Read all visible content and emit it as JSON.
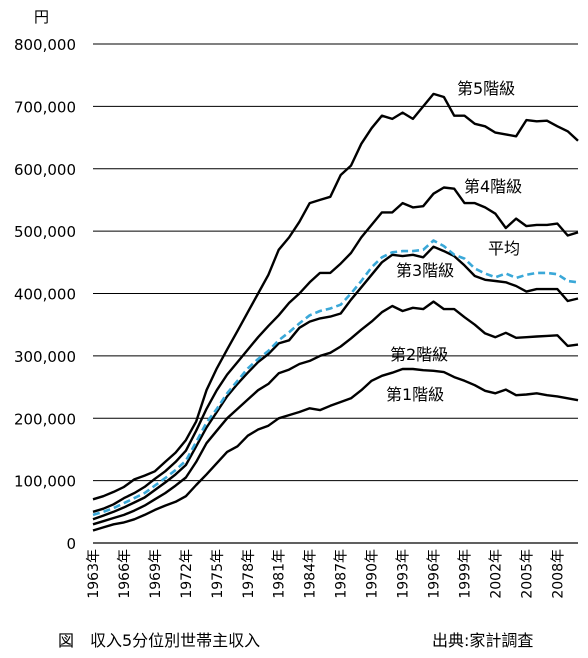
{
  "chart_data": {
    "type": "line",
    "y_unit": "円",
    "ylim": [
      0,
      800000
    ],
    "y_ticks": [
      0,
      100000,
      200000,
      300000,
      400000,
      500000,
      600000,
      700000,
      800000
    ],
    "y_tick_labels": [
      "0",
      "100,000",
      "200,000",
      "300,000",
      "400,000",
      "500,000",
      "600,000",
      "700,000",
      "800,000"
    ],
    "x": [
      1963,
      1964,
      1965,
      1966,
      1967,
      1968,
      1969,
      1970,
      1971,
      1972,
      1973,
      1974,
      1975,
      1976,
      1977,
      1978,
      1979,
      1980,
      1981,
      1982,
      1983,
      1984,
      1985,
      1986,
      1987,
      1988,
      1989,
      1990,
      1991,
      1992,
      1993,
      1994,
      1995,
      1996,
      1997,
      1998,
      1999,
      2000,
      2001,
      2002,
      2003,
      2004,
      2005,
      2006,
      2007,
      2008,
      2009,
      2010
    ],
    "x_ticks": [
      1963,
      1966,
      1969,
      1972,
      1975,
      1978,
      1981,
      1984,
      1987,
      1990,
      1993,
      1996,
      1999,
      2002,
      2005,
      2008
    ],
    "x_tick_labels": [
      "1963年",
      "1966年",
      "1969年",
      "1972年",
      "1975年",
      "1978年",
      "1981年",
      "1984年",
      "1987年",
      "1990年",
      "1993年",
      "1996年",
      "1999年",
      "2002年",
      "2005年",
      "2008年"
    ],
    "grid": "horizontal",
    "series": [
      {
        "name": "第1階級",
        "style": "solid",
        "color": "#000000",
        "values": [
          20000,
          25000,
          30000,
          33000,
          38000,
          45000,
          53000,
          60000,
          66000,
          75000,
          93000,
          110000,
          128000,
          146000,
          155000,
          172000,
          182000,
          188000,
          200000,
          205000,
          210000,
          216000,
          213000,
          220000,
          226000,
          232000,
          245000,
          260000,
          268000,
          273000,
          279000,
          279000,
          277000,
          276000,
          274000,
          266000,
          260000,
          253000,
          244000,
          240000,
          246000,
          237000,
          238000,
          240000,
          237000,
          235000,
          232000,
          229000
        ]
      },
      {
        "name": "第2階級",
        "style": "solid",
        "color": "#000000",
        "values": [
          30000,
          35000,
          40000,
          45000,
          52000,
          60000,
          70000,
          80000,
          92000,
          105000,
          130000,
          160000,
          180000,
          200000,
          215000,
          230000,
          245000,
          255000,
          272000,
          278000,
          287000,
          292000,
          300000,
          305000,
          315000,
          328000,
          342000,
          355000,
          370000,
          380000,
          372000,
          377000,
          375000,
          387000,
          375000,
          375000,
          362000,
          350000,
          336000,
          330000,
          337000,
          329000,
          330000,
          331000,
          332000,
          333000,
          316000,
          318000
        ]
      },
      {
        "name": "第3階級",
        "style": "solid",
        "color": "#000000",
        "values": [
          38000,
          44000,
          50000,
          57000,
          65000,
          73000,
          85000,
          97000,
          110000,
          125000,
          155000,
          185000,
          210000,
          235000,
          255000,
          273000,
          290000,
          303000,
          320000,
          325000,
          345000,
          355000,
          360000,
          363000,
          368000,
          390000,
          410000,
          430000,
          450000,
          462000,
          460000,
          462000,
          458000,
          475000,
          468000,
          460000,
          445000,
          428000,
          422000,
          420000,
          418000,
          412000,
          403000,
          407000,
          407000,
          407000,
          388000,
          392000
        ]
      },
      {
        "name": "平均",
        "style": "dashed",
        "color": "#3aa8d8",
        "values": [
          45000,
          50000,
          56000,
          64000,
          72000,
          80000,
          92000,
          104000,
          117000,
          132000,
          162000,
          193000,
          215000,
          240000,
          260000,
          280000,
          295000,
          308000,
          325000,
          338000,
          352000,
          365000,
          372000,
          376000,
          382000,
          400000,
          420000,
          442000,
          458000,
          466000,
          468000,
          468000,
          470000,
          485000,
          476000,
          462000,
          456000,
          440000,
          432000,
          426000,
          432000,
          425000,
          430000,
          433000,
          433000,
          431000,
          420000,
          418000
        ]
      },
      {
        "name": "第4階級",
        "style": "solid",
        "color": "#000000",
        "values": [
          50000,
          55000,
          62000,
          72000,
          80000,
          90000,
          103000,
          115000,
          130000,
          148000,
          180000,
          215000,
          245000,
          270000,
          290000,
          310000,
          330000,
          348000,
          365000,
          385000,
          400000,
          418000,
          433000,
          433000,
          448000,
          465000,
          490000,
          510000,
          530000,
          530000,
          545000,
          538000,
          540000,
          560000,
          570000,
          568000,
          545000,
          545000,
          538000,
          528000,
          505000,
          520000,
          508000,
          510000,
          510000,
          512000,
          493000,
          498000
        ]
      },
      {
        "name": "第5階級",
        "style": "solid",
        "color": "#000000",
        "values": [
          70000,
          75000,
          82000,
          90000,
          102000,
          108000,
          115000,
          130000,
          145000,
          165000,
          195000,
          245000,
          280000,
          310000,
          340000,
          370000,
          400000,
          430000,
          470000,
          490000,
          515000,
          545000,
          550000,
          555000,
          590000,
          605000,
          640000,
          665000,
          685000,
          680000,
          690000,
          680000,
          700000,
          720000,
          715000,
          685000,
          685000,
          672000,
          668000,
          658000,
          655000,
          652000,
          678000,
          676000,
          677000,
          668000,
          660000,
          645000
        ]
      }
    ]
  },
  "caption": {
    "title": "図　収入5分位別世帯主収入",
    "source": "出典:家計調査"
  }
}
